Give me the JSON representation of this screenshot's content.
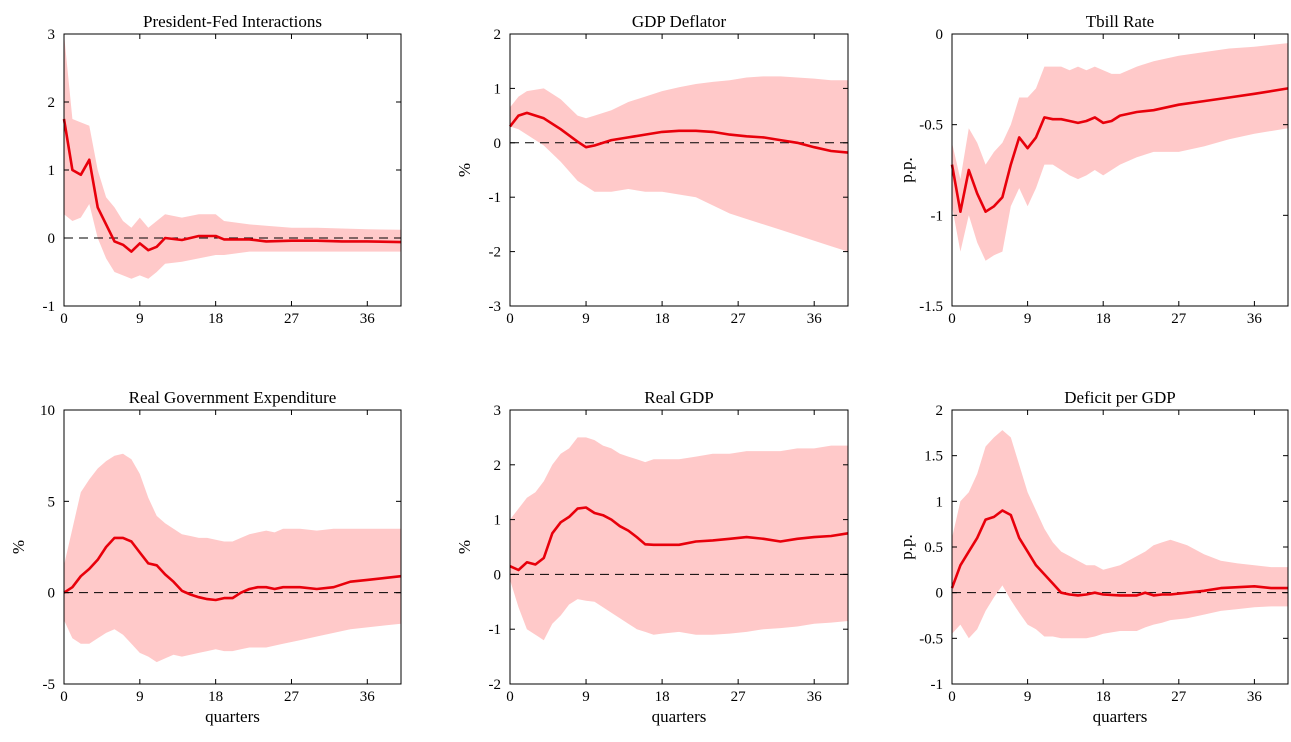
{
  "chart_data": [
    {
      "type": "line",
      "title": "President-Fed Interactions",
      "xlabel": "",
      "ylabel": "",
      "xlim": [
        0,
        40
      ],
      "ylim": [
        -1,
        3
      ],
      "xticks": [
        0,
        9,
        18,
        27,
        36
      ],
      "yticks": [
        -1,
        0,
        1,
        2,
        3
      ],
      "ytick_labels": [
        "-1",
        "0",
        "1",
        "2",
        "3"
      ],
      "zero_line": true,
      "colors": {
        "line": "#e8000b",
        "band": "#ffc9c9",
        "zero": "#000000"
      },
      "x": [
        0,
        1,
        2,
        3,
        4,
        5,
        6,
        7,
        8,
        9,
        10,
        11,
        12,
        14,
        16,
        18,
        19,
        22,
        24,
        27,
        30,
        33,
        36,
        40
      ],
      "series": [
        {
          "role": "median",
          "values": [
            1.75,
            1.0,
            0.93,
            1.15,
            0.45,
            0.2,
            -0.05,
            -0.1,
            -0.2,
            -0.08,
            -0.18,
            -0.13,
            0.0,
            -0.03,
            0.03,
            0.03,
            -0.02,
            -0.02,
            -0.05,
            -0.04,
            -0.04,
            -0.05,
            -0.05,
            -0.06
          ]
        },
        {
          "role": "upper",
          "values": [
            3.0,
            1.75,
            1.7,
            1.65,
            1.0,
            0.6,
            0.45,
            0.25,
            0.15,
            0.3,
            0.15,
            0.25,
            0.35,
            0.3,
            0.35,
            0.35,
            0.25,
            0.2,
            0.18,
            0.15,
            0.15,
            0.14,
            0.13,
            0.12
          ]
        },
        {
          "role": "lower",
          "values": [
            0.35,
            0.25,
            0.3,
            0.5,
            0.0,
            -0.3,
            -0.5,
            -0.55,
            -0.6,
            -0.55,
            -0.6,
            -0.5,
            -0.38,
            -0.35,
            -0.3,
            -0.25,
            -0.25,
            -0.2,
            -0.2,
            -0.2,
            -0.2,
            -0.2,
            -0.2,
            -0.2
          ]
        }
      ]
    },
    {
      "type": "line",
      "title": "GDP Deflator",
      "xlabel": "",
      "ylabel": "%",
      "xlim": [
        0,
        40
      ],
      "ylim": [
        -3,
        2
      ],
      "xticks": [
        0,
        9,
        18,
        27,
        36
      ],
      "yticks": [
        -3,
        -2,
        -1,
        0,
        1,
        2
      ],
      "ytick_labels": [
        "-3",
        "-2",
        "-1",
        "0",
        "1",
        "2"
      ],
      "zero_line": true,
      "colors": {
        "line": "#e8000b",
        "band": "#ffc9c9",
        "zero": "#000000"
      },
      "x": [
        0,
        1,
        2,
        4,
        6,
        8,
        9,
        10,
        12,
        14,
        16,
        18,
        20,
        22,
        24,
        26,
        28,
        30,
        32,
        34,
        36,
        38,
        40
      ],
      "series": [
        {
          "role": "median",
          "values": [
            0.3,
            0.5,
            0.55,
            0.45,
            0.25,
            0.02,
            -0.08,
            -0.05,
            0.05,
            0.1,
            0.15,
            0.2,
            0.22,
            0.22,
            0.2,
            0.15,
            0.12,
            0.1,
            0.05,
            0.0,
            -0.08,
            -0.15,
            -0.18
          ]
        },
        {
          "role": "upper",
          "values": [
            0.65,
            0.85,
            0.95,
            1.0,
            0.8,
            0.5,
            0.45,
            0.5,
            0.6,
            0.75,
            0.85,
            0.95,
            1.02,
            1.08,
            1.12,
            1.15,
            1.2,
            1.22,
            1.22,
            1.2,
            1.18,
            1.15,
            1.15
          ]
        },
        {
          "role": "lower",
          "values": [
            0.3,
            0.25,
            0.15,
            -0.05,
            -0.35,
            -0.7,
            -0.8,
            -0.9,
            -0.9,
            -0.85,
            -0.9,
            -0.9,
            -0.95,
            -1.0,
            -1.15,
            -1.3,
            -1.4,
            -1.5,
            -1.6,
            -1.7,
            -1.8,
            -1.9,
            -2.0
          ]
        }
      ]
    },
    {
      "type": "line",
      "title": "Tbill Rate",
      "xlabel": "",
      "ylabel": "p.p.",
      "xlim": [
        0,
        40
      ],
      "ylim": [
        -1.5,
        0
      ],
      "xticks": [
        0,
        9,
        18,
        27,
        36
      ],
      "yticks": [
        -1.5,
        -1,
        -0.5,
        0
      ],
      "ytick_labels": [
        "-1.5",
        "-1",
        "-0.5",
        "0"
      ],
      "zero_line": false,
      "colors": {
        "line": "#e8000b",
        "band": "#ffc9c9",
        "zero": "#000000"
      },
      "x": [
        0,
        1,
        2,
        3,
        4,
        5,
        6,
        7,
        8,
        9,
        10,
        11,
        12,
        13,
        14,
        15,
        16,
        17,
        18,
        19,
        20,
        22,
        24,
        27,
        30,
        33,
        36,
        40
      ],
      "series": [
        {
          "role": "median",
          "values": [
            -0.72,
            -0.98,
            -0.75,
            -0.88,
            -0.98,
            -0.95,
            -0.9,
            -0.72,
            -0.57,
            -0.63,
            -0.57,
            -0.46,
            -0.47,
            -0.47,
            -0.48,
            -0.49,
            -0.48,
            -0.46,
            -0.49,
            -0.48,
            -0.45,
            -0.43,
            -0.42,
            -0.39,
            -0.37,
            -0.35,
            -0.33,
            -0.3
          ]
        },
        {
          "role": "upper",
          "values": [
            -0.6,
            -0.8,
            -0.52,
            -0.6,
            -0.72,
            -0.65,
            -0.6,
            -0.5,
            -0.35,
            -0.35,
            -0.3,
            -0.18,
            -0.18,
            -0.18,
            -0.2,
            -0.18,
            -0.2,
            -0.18,
            -0.2,
            -0.22,
            -0.22,
            -0.18,
            -0.15,
            -0.12,
            -0.1,
            -0.08,
            -0.07,
            -0.05
          ]
        },
        {
          "role": "lower",
          "values": [
            -0.95,
            -1.2,
            -1.0,
            -1.15,
            -1.25,
            -1.22,
            -1.2,
            -0.95,
            -0.85,
            -0.95,
            -0.85,
            -0.72,
            -0.72,
            -0.75,
            -0.78,
            -0.8,
            -0.78,
            -0.75,
            -0.78,
            -0.75,
            -0.72,
            -0.68,
            -0.65,
            -0.65,
            -0.62,
            -0.58,
            -0.55,
            -0.52
          ]
        }
      ]
    },
    {
      "type": "line",
      "title": "Real Government Expenditure",
      "xlabel": "quarters",
      "ylabel": "%",
      "xlim": [
        0,
        40
      ],
      "ylim": [
        -5,
        10
      ],
      "xticks": [
        0,
        9,
        18,
        27,
        36
      ],
      "yticks": [
        -5,
        0,
        5,
        10
      ],
      "ytick_labels": [
        "-5",
        "0",
        "5",
        "10"
      ],
      "zero_line": true,
      "colors": {
        "line": "#e8000b",
        "band": "#ffc9c9",
        "zero": "#000000"
      },
      "x": [
        0,
        1,
        2,
        3,
        4,
        5,
        6,
        7,
        8,
        9,
        10,
        11,
        12,
        13,
        14,
        15,
        16,
        17,
        18,
        19,
        20,
        21,
        22,
        23,
        24,
        25,
        26,
        28,
        30,
        32,
        34,
        36,
        38,
        40
      ],
      "series": [
        {
          "role": "median",
          "values": [
            0.0,
            0.3,
            0.9,
            1.3,
            1.8,
            2.5,
            3.0,
            3.0,
            2.8,
            2.2,
            1.6,
            1.5,
            1.0,
            0.6,
            0.1,
            -0.1,
            -0.25,
            -0.35,
            -0.4,
            -0.3,
            -0.3,
            0.0,
            0.2,
            0.3,
            0.3,
            0.2,
            0.3,
            0.3,
            0.2,
            0.3,
            0.6,
            0.7,
            0.8,
            0.9
          ]
        },
        {
          "role": "upper",
          "values": [
            1.5,
            3.5,
            5.5,
            6.2,
            6.8,
            7.2,
            7.5,
            7.6,
            7.3,
            6.5,
            5.2,
            4.2,
            3.8,
            3.5,
            3.2,
            3.1,
            3.0,
            3.0,
            2.9,
            2.8,
            2.8,
            3.0,
            3.2,
            3.3,
            3.4,
            3.3,
            3.5,
            3.5,
            3.4,
            3.5,
            3.5,
            3.5,
            3.5,
            3.5
          ]
        },
        {
          "role": "lower",
          "values": [
            -1.5,
            -2.5,
            -2.8,
            -2.8,
            -2.5,
            -2.2,
            -2.0,
            -2.3,
            -2.8,
            -3.3,
            -3.5,
            -3.8,
            -3.6,
            -3.4,
            -3.5,
            -3.4,
            -3.3,
            -3.2,
            -3.1,
            -3.2,
            -3.2,
            -3.1,
            -3.0,
            -3.0,
            -3.0,
            -2.9,
            -2.8,
            -2.6,
            -2.4,
            -2.2,
            -2.0,
            -1.9,
            -1.8,
            -1.7
          ]
        }
      ]
    },
    {
      "type": "line",
      "title": "Real GDP",
      "xlabel": "quarters",
      "ylabel": "%",
      "xlim": [
        0,
        40
      ],
      "ylim": [
        -2,
        3
      ],
      "xticks": [
        0,
        9,
        18,
        27,
        36
      ],
      "yticks": [
        -2,
        -1,
        0,
        1,
        2,
        3
      ],
      "ytick_labels": [
        "-2",
        "-1",
        "0",
        "1",
        "2",
        "3"
      ],
      "zero_line": true,
      "colors": {
        "line": "#e8000b",
        "band": "#ffc9c9",
        "zero": "#000000"
      },
      "x": [
        0,
        1,
        2,
        3,
        4,
        5,
        6,
        7,
        8,
        9,
        10,
        11,
        12,
        13,
        14,
        15,
        16,
        17,
        18,
        20,
        22,
        24,
        26,
        28,
        30,
        32,
        34,
        36,
        38,
        40
      ],
      "series": [
        {
          "role": "median",
          "values": [
            0.15,
            0.08,
            0.22,
            0.18,
            0.3,
            0.75,
            0.95,
            1.05,
            1.2,
            1.22,
            1.12,
            1.08,
            1.0,
            0.88,
            0.8,
            0.68,
            0.55,
            0.54,
            0.54,
            0.54,
            0.6,
            0.62,
            0.65,
            0.68,
            0.65,
            0.6,
            0.65,
            0.68,
            0.7,
            0.75
          ]
        },
        {
          "role": "upper",
          "values": [
            1.0,
            1.2,
            1.4,
            1.5,
            1.7,
            2.0,
            2.2,
            2.3,
            2.5,
            2.5,
            2.45,
            2.35,
            2.3,
            2.2,
            2.15,
            2.1,
            2.05,
            2.1,
            2.1,
            2.1,
            2.15,
            2.2,
            2.2,
            2.25,
            2.25,
            2.25,
            2.3,
            2.3,
            2.35,
            2.35
          ]
        },
        {
          "role": "lower",
          "values": [
            -0.1,
            -0.6,
            -1.0,
            -1.1,
            -1.2,
            -0.9,
            -0.75,
            -0.55,
            -0.45,
            -0.48,
            -0.5,
            -0.6,
            -0.7,
            -0.8,
            -0.9,
            -1.0,
            -1.05,
            -1.1,
            -1.08,
            -1.05,
            -1.1,
            -1.1,
            -1.08,
            -1.05,
            -1.0,
            -0.98,
            -0.95,
            -0.9,
            -0.88,
            -0.85
          ]
        }
      ]
    },
    {
      "type": "line",
      "title": "Deficit per GDP",
      "xlabel": "quarters",
      "ylabel": "p.p.",
      "xlim": [
        0,
        40
      ],
      "ylim": [
        -1,
        2
      ],
      "xticks": [
        0,
        9,
        18,
        27,
        36
      ],
      "yticks": [
        -1,
        -0.5,
        0,
        0.5,
        1,
        1.5,
        2
      ],
      "ytick_labels": [
        "-1",
        "-0.5",
        "0",
        "0.5",
        "1",
        "1.5",
        "2"
      ],
      "zero_line": true,
      "colors": {
        "line": "#e8000b",
        "band": "#ffc9c9",
        "zero": "#000000"
      },
      "x": [
        0,
        1,
        2,
        3,
        4,
        5,
        6,
        7,
        8,
        9,
        10,
        11,
        12,
        13,
        14,
        15,
        16,
        17,
        18,
        20,
        22,
        23,
        24,
        25,
        26,
        28,
        30,
        32,
        34,
        36,
        38,
        40
      ],
      "series": [
        {
          "role": "median",
          "values": [
            0.05,
            0.3,
            0.45,
            0.6,
            0.8,
            0.83,
            0.9,
            0.85,
            0.6,
            0.45,
            0.3,
            0.2,
            0.1,
            0.0,
            -0.02,
            -0.03,
            -0.02,
            0.0,
            -0.02,
            -0.03,
            -0.03,
            0.0,
            -0.03,
            -0.02,
            -0.02,
            0.0,
            0.02,
            0.05,
            0.06,
            0.07,
            0.05,
            0.05
          ]
        },
        {
          "role": "upper",
          "values": [
            0.6,
            1.0,
            1.1,
            1.3,
            1.6,
            1.7,
            1.78,
            1.7,
            1.4,
            1.1,
            0.9,
            0.7,
            0.55,
            0.45,
            0.4,
            0.35,
            0.3,
            0.3,
            0.25,
            0.3,
            0.4,
            0.45,
            0.52,
            0.55,
            0.58,
            0.52,
            0.42,
            0.35,
            0.32,
            0.3,
            0.28,
            0.28
          ]
        },
        {
          "role": "lower",
          "values": [
            -0.45,
            -0.35,
            -0.5,
            -0.4,
            -0.2,
            -0.05,
            0.08,
            -0.08,
            -0.22,
            -0.35,
            -0.4,
            -0.48,
            -0.48,
            -0.5,
            -0.5,
            -0.5,
            -0.5,
            -0.48,
            -0.45,
            -0.42,
            -0.42,
            -0.38,
            -0.35,
            -0.33,
            -0.3,
            -0.28,
            -0.24,
            -0.2,
            -0.18,
            -0.16,
            -0.15,
            -0.15
          ]
        }
      ]
    }
  ]
}
